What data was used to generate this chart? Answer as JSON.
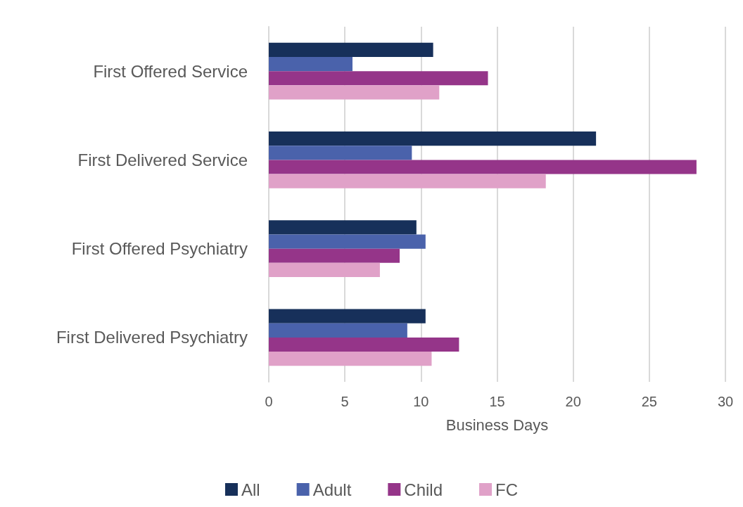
{
  "chart_data": {
    "type": "bar",
    "orientation": "horizontal",
    "xlabel": "Business Days",
    "categories": [
      "First Offered Service",
      "First Delivered Service",
      "First Offered Psychiatry",
      "First Delivered Psychiatry"
    ],
    "series": [
      {
        "name": "All",
        "color": "#17305a",
        "values": [
          10.8,
          21.5,
          9.7,
          10.3
        ]
      },
      {
        "name": "Adult",
        "color": "#4a62ab",
        "values": [
          5.5,
          9.4,
          10.3,
          9.1
        ]
      },
      {
        "name": "Child",
        "color": "#953589",
        "values": [
          14.4,
          28.1,
          8.6,
          12.5
        ]
      },
      {
        "name": "FC",
        "color": "#e0a1c8",
        "values": [
          11.2,
          18.2,
          7.3,
          10.7
        ]
      }
    ],
    "xlim": [
      0,
      30
    ],
    "xticks": [
      0,
      5,
      10,
      15,
      20,
      25,
      30
    ],
    "grid": "x",
    "legend": "bottom"
  }
}
